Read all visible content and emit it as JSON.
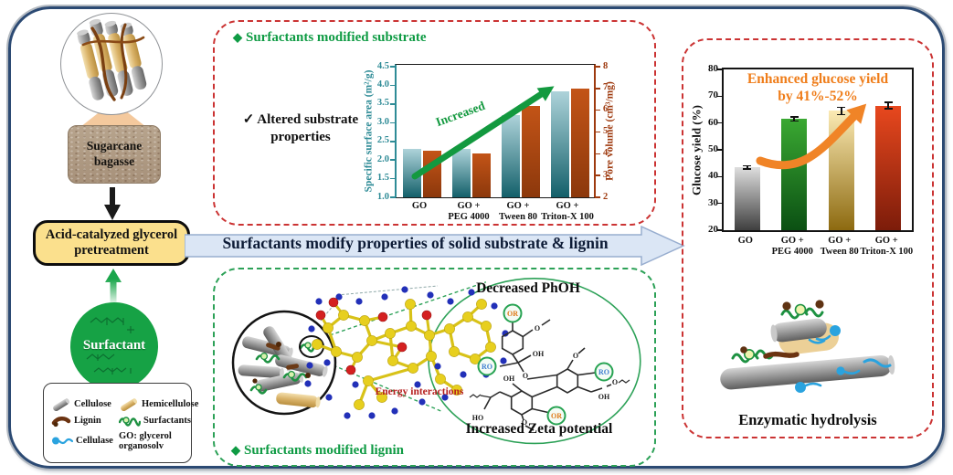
{
  "left": {
    "bagasse_label": "Sugarcane bagasse",
    "pretreatment_label": "Acid-catalyzed glycerol pretreatment",
    "surfactant_label": "Surfactant",
    "legend": {
      "cellulose": "Cellulose",
      "hemicellulose": "Hemicellulose",
      "lignin": "Lignin",
      "surfactants": "Surfactants",
      "cellulase": "Cellulase",
      "go_definition": "GO: glycerol organosolv"
    }
  },
  "substrate_panel": {
    "bullet": "◆",
    "title": "Surfactants modified substrate",
    "note": "✓ Altered substrate properties"
  },
  "main_arrow": {
    "label": "Surfactants modify properties of solid substrate & lignin"
  },
  "lignin_panel": {
    "bullet": "◆",
    "title": "Surfactants modified lignin",
    "decreased": "Decreased PhOH",
    "energy": "Energy interactions",
    "increased": "Increased Zeta potential",
    "labels": {
      "or": "OR",
      "ro": "RO",
      "oh": "OH",
      "ho": "HO",
      "o": "O"
    }
  },
  "yield_panel": {
    "caption": "Enzymatic hydrolysis"
  },
  "colors": {
    "green_accent": "#0f9b44",
    "red_dash": "#cb3333",
    "green_dash": "#2ca157",
    "frame_navy": "#2c4a73",
    "teal_axis": "#2e8b96",
    "rust_axis": "#9e3a0f",
    "orange_headline": "#ef7d1a",
    "surfactant_green": "#16a245",
    "pretreatment_yellow": "#fbe08d"
  },
  "chart_data": [
    {
      "id": "substrate",
      "type": "bar",
      "categories": [
        "GO",
        "GO +|PEG 4000",
        "GO +|Tween 80",
        "GO +|Triton-X 100"
      ],
      "series": [
        {
          "name": "Specific surface area",
          "axis": "left",
          "values": [
            2.3,
            2.3,
            3.2,
            3.85
          ],
          "color_top": "#aed3da",
          "color_bottom": "#13606a"
        },
        {
          "name": "Pore volume",
          "axis": "right",
          "values": [
            4.15,
            4.0,
            6.2,
            7.0
          ],
          "color_top": "#c35417",
          "color_bottom": "#8c380c"
        }
      ],
      "left_axis": {
        "label": "Specific surface area (m²/g)",
        "min": 1.0,
        "max": 4.5,
        "ticks": [
          "1.0",
          "1.5",
          "2.0",
          "2.5",
          "3.0",
          "3.5",
          "4.0",
          "4.5"
        ],
        "color": "#2e8b96"
      },
      "right_axis": {
        "label": "Pore volume (cm³/mg)",
        "min": 2,
        "max": 8,
        "ticks": [
          "2",
          "3",
          "4",
          "5",
          "6",
          "7",
          "8"
        ],
        "color": "#9e3a0f"
      },
      "annotation": "Increased",
      "grid": false,
      "legend_position": "none"
    },
    {
      "id": "glucose",
      "type": "bar",
      "categories": [
        "GO",
        "GO +|PEG 4000",
        "GO +|Tween 80",
        "GO +|Triton-X 100"
      ],
      "values": [
        43.5,
        61.5,
        64.5,
        66.5
      ],
      "errors": [
        0.6,
        0.8,
        1.4,
        1.2
      ],
      "bar_colors": [
        [
          "#dedede",
          "#3f3f3f"
        ],
        [
          "#3aa832",
          "#0b5013"
        ],
        [
          "#fbeab4",
          "#8d6a10"
        ],
        [
          "#e8481e",
          "#7c1c0a"
        ]
      ],
      "ylabel": "Glucose yield (%)",
      "ylim": [
        20,
        80
      ],
      "yticks": [
        "20",
        "30",
        "40",
        "50",
        "60",
        "70",
        "80"
      ],
      "annotation_lines": [
        "Enhanced glucose yield",
        "by 41%-52%"
      ],
      "grid": false,
      "legend_position": "none"
    }
  ]
}
